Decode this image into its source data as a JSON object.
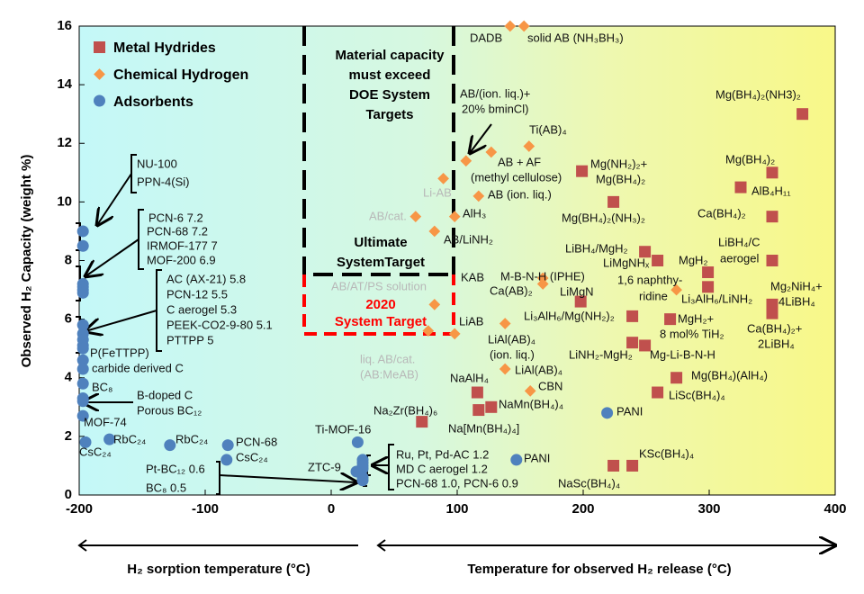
{
  "chart_data": {
    "type": "scatter",
    "title": "",
    "xlabel": "Temperature for observed H₂ release (°C)",
    "xlabel_left": "H₂ sorption temperature (°C)",
    "ylabel": "Observed H₂ Capacity (weight %)",
    "xlim": [
      -200,
      400
    ],
    "ylim": [
      0,
      16
    ],
    "xticks": [
      -200,
      -100,
      0,
      100,
      200,
      300,
      400
    ],
    "yticks": [
      0,
      2,
      4,
      6,
      8,
      10,
      12,
      14,
      16
    ],
    "grid": false,
    "legend_placement": "top-left",
    "series": [
      {
        "name": "Metal Hydrides",
        "marker": "square",
        "color": "#c0504d",
        "points": [
          [
            374,
            13.0
          ],
          [
            350,
            11.0
          ],
          [
            325,
            10.5
          ],
          [
            350,
            9.5
          ],
          [
            350,
            8.0
          ],
          [
            199,
            11.05
          ],
          [
            224,
            10.0
          ],
          [
            249,
            8.3
          ],
          [
            259,
            8.0
          ],
          [
            299,
            7.6
          ],
          [
            299,
            7.1
          ],
          [
            350,
            6.5
          ],
          [
            350,
            6.2
          ],
          [
            198,
            6.6
          ],
          [
            239,
            6.1
          ],
          [
            269,
            6.0
          ],
          [
            239,
            5.2
          ],
          [
            249,
            5.1
          ],
          [
            274,
            4.0
          ],
          [
            259,
            3.5
          ],
          [
            116,
            3.5
          ],
          [
            127,
            3.0
          ],
          [
            117,
            2.9
          ],
          [
            72,
            2.5
          ],
          [
            224,
            1.0
          ],
          [
            239,
            1.0
          ]
        ]
      },
      {
        "name": "Chemical Hydrogen",
        "marker": "diamond",
        "color": "#f79646",
        "points": [
          [
            142,
            16
          ],
          [
            153,
            16
          ],
          [
            157,
            11.9
          ],
          [
            127,
            11.7
          ],
          [
            107,
            11.4
          ],
          [
            89,
            10.8
          ],
          [
            117,
            10.2
          ],
          [
            67,
            9.5
          ],
          [
            98,
            9.5
          ],
          [
            82,
            9.0
          ],
          [
            168,
            7.4
          ],
          [
            168,
            7.2
          ],
          [
            274,
            7.0
          ],
          [
            82,
            6.5
          ],
          [
            77,
            5.6
          ],
          [
            98,
            5.5
          ],
          [
            138,
            5.85
          ],
          [
            138,
            4.3
          ],
          [
            158,
            3.55
          ]
        ]
      },
      {
        "name": "Adsorbents",
        "marker": "circle",
        "color": "#4f81bd",
        "points": [
          [
            -197,
            9.0
          ],
          [
            -197,
            8.5
          ],
          [
            -197,
            7.2
          ],
          [
            -197,
            7.1
          ],
          [
            -197,
            7.0
          ],
          [
            -197,
            6.9
          ],
          [
            -197,
            5.8
          ],
          [
            -197,
            5.5
          ],
          [
            -197,
            5.3
          ],
          [
            -197,
            5.1
          ],
          [
            -197,
            5.0
          ],
          [
            -197,
            4.6
          ],
          [
            -197,
            4.3
          ],
          [
            -197,
            3.8
          ],
          [
            -197,
            3.3
          ],
          [
            -197,
            3.2
          ],
          [
            -197,
            2.7
          ],
          [
            -195,
            1.8
          ],
          [
            -176,
            1.9
          ],
          [
            -128,
            1.7
          ],
          [
            -82,
            1.7
          ],
          [
            -83,
            1.2
          ],
          [
            21,
            1.8
          ],
          [
            25,
            1.2
          ],
          [
            25,
            1.1
          ],
          [
            25,
            1.0
          ],
          [
            25,
            0.9
          ],
          [
            20,
            0.8
          ],
          [
            25,
            0.6
          ],
          [
            25,
            0.5
          ],
          [
            147,
            1.2
          ],
          [
            219,
            2.8
          ]
        ]
      }
    ],
    "targets": {
      "ultimate": {
        "temp_max": 100,
        "capacity": 7.5
      },
      "system_2020": {
        "temp_min": -20,
        "temp_max": 100,
        "capacity": 5.5
      },
      "colors": {
        "ultimate": "#000000",
        "system_2020": "#ff0000"
      }
    },
    "target_text": [
      "Material capacity",
      "must exceed",
      "DOE System",
      "Targets",
      "Ultimate",
      "SystemTarget",
      "2020",
      "System Target"
    ],
    "annotations": [
      "NU-100",
      "PPN-4(Si)",
      "PCN-6 7.2",
      "PCN-68 7.2",
      "IRMOF-177 7",
      "MOF-200 6.9",
      "AC (AX-21) 5.8",
      "PCN-12 5.5",
      "C aerogel 5.3",
      "PEEK-CO2-9-80 5.1",
      "PTTPP 5",
      "P(FeTTPP)",
      "carbide derived C",
      "BC₈",
      "B-doped C",
      "Porous BC₁₂",
      "MOF-74",
      "CsC₂₄",
      "RbC₂₄",
      "RbC₂₄",
      "PCN-68",
      "CsC₂₄",
      "Ti-MOF-16",
      "ZTC-9",
      "Pt-BC₁₂ 0.6",
      "BC₈ 0.5",
      "Ru, Pt, Pd-AC 1.2",
      "MD C aerogel 1.2",
      "PCN-68 1.0, PCN-6 0.9",
      "DADB",
      "solid AB (NH₃BH₃)",
      "AB/(ion. liq.)+",
      "20% bminCl)",
      "Ti(AB)₄",
      "AB + AF",
      "(methyl cellulose)",
      "Li-AB",
      "AB (ion. liq.)",
      "AB/cat.",
      "AlH₃",
      "AB/LiNH₂",
      "KAB",
      "M-B-N-H (IPHE)",
      "Ca(AB)₂",
      "AB/AT/PS solution",
      "LiAB",
      "liq. AB/cat.",
      "(AB:MeAB)",
      "LiAl(AB)₄",
      "(ion. liq.)",
      "LiAl(AB)₄",
      "CBN",
      "NaAlH₄",
      "NaMn(BH₄)₄",
      "Na[Mn(BH₄)₄]",
      "Na₂Zr(BH₄)₆",
      "PANI",
      "PANI",
      "KSc(BH₄)₄",
      "NaSc(BH₄)₄",
      "LiSc(BH₄)₄",
      "Mg(BH₄)(AlH₄)",
      "LiNH₂-MgH₂",
      "Mg-Li-B-N-H",
      "Li₃AlH₆/Mg(NH₂)₂",
      "MgH₂+",
      "8 mol% TiH₂",
      "Ca(BH₄)₂+",
      "2LiBH₄",
      "Mg₂NiH₄+",
      "4LiBH₄",
      "LiMgN",
      "1,6 naphthy-",
      "ridine",
      "Li₃AlH₆/LiNH₂",
      "MgH₂",
      "LiBH₄/C",
      "aerogel",
      "LiBH₄/MgH₂",
      "LiMgNHₓ",
      "Mg(BH₄)₂(NH₃)₂",
      "Mg(NH₂)₂+",
      "Mg(BH₄)₂",
      "Ca(BH₄)₂",
      "AlB₄H₁₁",
      "Mg(BH₄)₂",
      "Mg(BH₄)₂(NH3)₂"
    ]
  }
}
